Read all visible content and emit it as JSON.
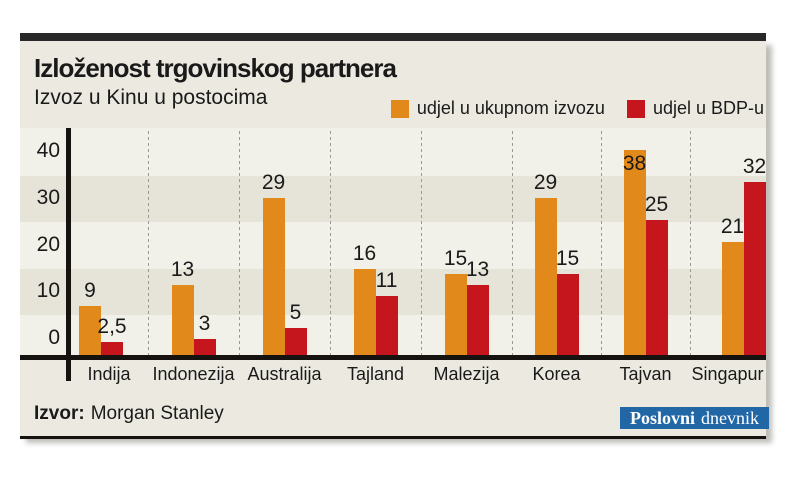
{
  "header": {
    "title": "Izloženost trgovinskog partnera",
    "subtitle": "Izvoz u Kinu u postocima"
  },
  "legend": [
    {
      "label": "udjel u ukupnom izvozu",
      "color": "#E2891B"
    },
    {
      "label": "udjel u BDP-u",
      "color": "#C5161D"
    }
  ],
  "chart_data": {
    "type": "bar",
    "categories": [
      "Indija",
      "Indonezija",
      "Australija",
      "Tajland",
      "Malezija",
      "Korea",
      "Tajvan",
      "Singapur"
    ],
    "series": [
      {
        "name": "udjel u ukupnom izvozu",
        "color": "#E2891B",
        "values": [
          9,
          13,
          29,
          16,
          15,
          29,
          38,
          21
        ]
      },
      {
        "name": "udjel u BDP-u",
        "color": "#C5161D",
        "values": [
          2.5,
          3,
          5,
          11,
          13,
          15,
          25,
          32
        ]
      }
    ],
    "yticks": [
      40,
      30,
      20,
      10,
      0
    ],
    "ylim": [
      0,
      42
    ],
    "decimal_separator": ",",
    "grid": "vertical-dashed-between-categories",
    "background_stripes": "horizontal-alternating",
    "legend_position": "top-right",
    "label_inside": [
      [
        false,
        false,
        false,
        false,
        false,
        false,
        true,
        false
      ],
      [
        false,
        false,
        false,
        false,
        false,
        false,
        false,
        false
      ]
    ]
  },
  "source": {
    "label": "Izvor:",
    "value": "Morgan Stanley"
  },
  "brand": {
    "name_bold": "Poslovni",
    "name_regular": "dnevnik",
    "bg_color": "#2166A5",
    "text_color": "#FFFFFF"
  },
  "colors": {
    "top_bar": "#282828",
    "panel_bg": "#ECEAE0",
    "stripe_light": "#F2F1E9",
    "stripe_dark": "#E6E4D8",
    "axis": "#15120F",
    "dashed_grid": "#9A9A90",
    "text": "#1A1A1A",
    "badge_bg": "#2166A5"
  }
}
